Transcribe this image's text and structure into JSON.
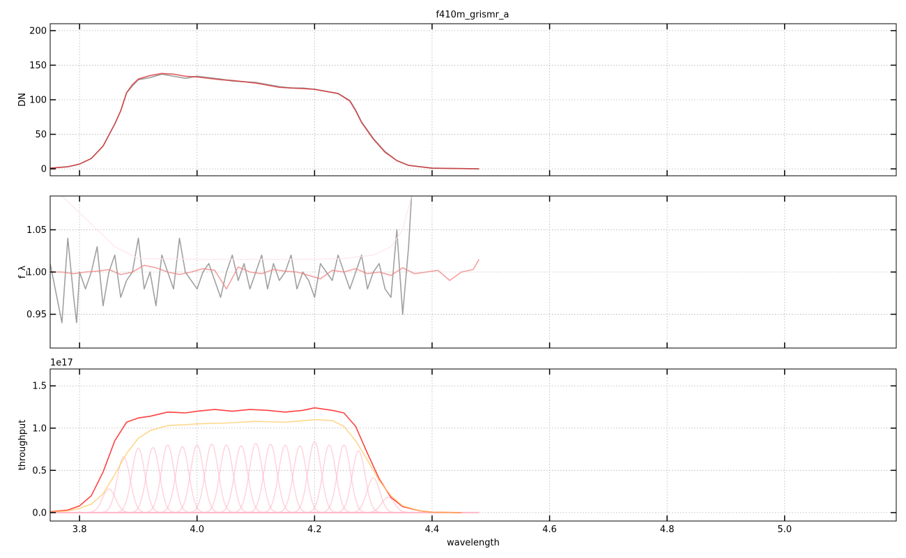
{
  "figure_title": "f410m_grismr_a",
  "chart_data": [
    {
      "type": "line",
      "panel": "top",
      "title": "f410m_grismr_a",
      "xlabel": "",
      "ylabel": "DN",
      "xlim": [
        3.75,
        5.19
      ],
      "ylim": [
        -10,
        210
      ],
      "xticks": [
        3.8,
        4.0,
        4.2,
        4.4,
        4.6,
        4.8,
        5.0
      ],
      "yticks": [
        0,
        50,
        100,
        150,
        200
      ],
      "ytick_labels": [
        "0",
        "50",
        "100",
        "150",
        "200"
      ],
      "grid": true,
      "series": [
        {
          "color": "#808080",
          "x": [
            3.75,
            3.78,
            3.8,
            3.82,
            3.84,
            3.86,
            3.87,
            3.88,
            3.89,
            3.9,
            3.92,
            3.94,
            3.96,
            3.98,
            4.0,
            4.02,
            4.04,
            4.06,
            4.08,
            4.1,
            4.12,
            4.14,
            4.16,
            4.18,
            4.2,
            4.22,
            4.24,
            4.26,
            4.27,
            4.28,
            4.3,
            4.32,
            4.34,
            4.36,
            4.38,
            4.4,
            4.44,
            4.48
          ],
          "y": [
            1,
            3,
            7,
            15,
            33,
            65,
            84,
            110,
            120,
            129,
            132,
            137,
            134,
            131,
            134,
            132,
            130,
            127,
            126,
            125,
            122,
            119,
            117,
            117,
            115,
            112,
            109,
            99,
            85,
            68,
            44,
            25,
            12,
            5,
            3,
            1,
            0.5,
            0
          ]
        },
        {
          "color": "#d62728",
          "x": [
            3.75,
            3.78,
            3.8,
            3.82,
            3.84,
            3.86,
            3.87,
            3.88,
            3.89,
            3.9,
            3.92,
            3.94,
            3.96,
            3.98,
            4.0,
            4.02,
            4.04,
            4.06,
            4.08,
            4.1,
            4.12,
            4.14,
            4.16,
            4.18,
            4.2,
            4.22,
            4.24,
            4.26,
            4.27,
            4.28,
            4.3,
            4.32,
            4.34,
            4.36,
            4.38,
            4.4,
            4.44,
            4.48
          ],
          "y": [
            1,
            3,
            7,
            15,
            33,
            65,
            84,
            110,
            122,
            130,
            135,
            138,
            137,
            134,
            133,
            131,
            129,
            128,
            126,
            124,
            121,
            118,
            117,
            116,
            115,
            112,
            109,
            98,
            84,
            67,
            43,
            24,
            12,
            5,
            3,
            1,
            0.5,
            0
          ]
        }
      ]
    },
    {
      "type": "line",
      "panel": "middle",
      "xlabel": "",
      "ylabel": "f_λ",
      "xlim": [
        3.75,
        5.19
      ],
      "ylim": [
        0.91,
        1.09
      ],
      "xticks": [
        3.8,
        4.0,
        4.2,
        4.4,
        4.6,
        4.8,
        5.0
      ],
      "yticks": [
        0.95,
        1.0,
        1.05
      ],
      "ytick_labels": [
        "0.95",
        "1.00",
        "1.05"
      ],
      "grid": true,
      "series": [
        {
          "color": "#808080",
          "x": [
            3.75,
            3.77,
            3.78,
            3.79,
            3.795,
            3.8,
            3.81,
            3.82,
            3.83,
            3.84,
            3.85,
            3.86,
            3.87,
            3.88,
            3.89,
            3.9,
            3.91,
            3.92,
            3.93,
            3.94,
            3.95,
            3.96,
            3.97,
            3.98,
            3.99,
            4.0,
            4.01,
            4.02,
            4.03,
            4.04,
            4.05,
            4.06,
            4.07,
            4.08,
            4.09,
            4.1,
            4.11,
            4.12,
            4.13,
            4.14,
            4.15,
            4.16,
            4.17,
            4.18,
            4.19,
            4.2,
            4.21,
            4.22,
            4.23,
            4.24,
            4.25,
            4.26,
            4.27,
            4.28,
            4.29,
            4.3,
            4.31,
            4.32,
            4.33,
            4.34,
            4.35,
            4.36,
            4.365
          ],
          "y": [
            1.01,
            0.94,
            1.04,
            0.97,
            0.94,
            1.0,
            0.98,
            1.0,
            1.03,
            0.96,
            1.0,
            1.02,
            0.97,
            0.99,
            1.0,
            1.04,
            0.98,
            1.0,
            0.96,
            1.02,
            1.0,
            0.98,
            1.04,
            1.0,
            0.99,
            0.98,
            1.0,
            1.01,
            0.99,
            0.97,
            1.0,
            1.02,
            0.99,
            1.01,
            0.98,
            1.0,
            1.02,
            0.98,
            1.01,
            0.99,
            1.0,
            1.02,
            0.98,
            1.0,
            0.99,
            0.97,
            1.01,
            1.0,
            0.99,
            1.02,
            1.0,
            0.98,
            1.0,
            1.02,
            0.98,
            1.0,
            1.01,
            0.98,
            0.97,
            1.05,
            0.95,
            1.03,
            1.09
          ]
        },
        {
          "color": "#f08080",
          "x": [
            3.75,
            3.77,
            3.79,
            3.81,
            3.83,
            3.85,
            3.87,
            3.89,
            3.91,
            3.93,
            3.95,
            3.97,
            3.99,
            4.01,
            4.03,
            4.05,
            4.07,
            4.09,
            4.11,
            4.13,
            4.15,
            4.17,
            4.19,
            4.21,
            4.23,
            4.25,
            4.27,
            4.29,
            4.31,
            4.33,
            4.35,
            4.37,
            4.39,
            4.41,
            4.43,
            4.45,
            4.47,
            4.48
          ],
          "y": [
            1.0,
            1.0,
            0.998,
            1.0,
            1.001,
            1.003,
            0.997,
            1.0,
            1.008,
            1.005,
            1.0,
            0.997,
            1.0,
            1.004,
            1.002,
            0.98,
            1.006,
            1.0,
            0.998,
            1.003,
            1.001,
            1.0,
            0.996,
            0.992,
            1.002,
            1.0,
            1.004,
            0.998,
            1.0,
            0.996,
            1.005,
            0.998,
            1.0,
            1.002,
            0.99,
            1.0,
            1.003,
            1.015
          ]
        },
        {
          "color": "#ffe4e8",
          "x": [
            3.77,
            3.8,
            3.83,
            3.86,
            3.9,
            4.0,
            4.1,
            4.2,
            4.25,
            4.3,
            4.33,
            4.35,
            4.365
          ],
          "y": [
            1.09,
            1.07,
            1.05,
            1.03,
            1.016,
            1.015,
            1.015,
            1.015,
            1.016,
            1.02,
            1.03,
            1.05,
            1.09
          ]
        }
      ]
    },
    {
      "type": "line",
      "panel": "bottom",
      "xlabel": "wavelength",
      "ylabel": "throughput",
      "offset_text": "1e17",
      "xlim": [
        3.75,
        5.19
      ],
      "ylim": [
        -0.1,
        1.7
      ],
      "xticks": [
        3.8,
        4.0,
        4.2,
        4.4,
        4.6,
        4.8,
        5.0
      ],
      "xtick_labels": [
        "3.8",
        "4.0",
        "4.2",
        "4.4",
        "4.6",
        "4.8",
        "5.0"
      ],
      "yticks": [
        0.0,
        0.5,
        1.0,
        1.5
      ],
      "ytick_labels": [
        "0.0",
        "0.5",
        "1.0",
        "1.5"
      ],
      "grid": true,
      "series": [
        {
          "color": "#ff0000",
          "x": [
            3.75,
            3.78,
            3.8,
            3.82,
            3.84,
            3.86,
            3.88,
            3.9,
            3.92,
            3.95,
            3.98,
            4.0,
            4.03,
            4.06,
            4.09,
            4.12,
            4.15,
            4.18,
            4.2,
            4.23,
            4.25,
            4.27,
            4.29,
            4.31,
            4.33,
            4.35,
            4.38,
            4.4,
            4.45
          ],
          "y": [
            0.01,
            0.03,
            0.08,
            0.2,
            0.48,
            0.85,
            1.07,
            1.12,
            1.14,
            1.19,
            1.18,
            1.2,
            1.22,
            1.2,
            1.22,
            1.21,
            1.19,
            1.21,
            1.24,
            1.21,
            1.18,
            1.02,
            0.7,
            0.4,
            0.18,
            0.07,
            0.02,
            0.005,
            0
          ]
        },
        {
          "color": "#ffc966",
          "x": [
            3.75,
            3.78,
            3.8,
            3.82,
            3.84,
            3.86,
            3.88,
            3.9,
            3.92,
            3.95,
            3.98,
            4.0,
            4.05,
            4.1,
            4.15,
            4.2,
            4.23,
            4.25,
            4.27,
            4.29,
            4.31,
            4.33,
            4.35,
            4.38,
            4.4,
            4.45
          ],
          "y": [
            0.005,
            0.02,
            0.05,
            0.1,
            0.22,
            0.45,
            0.7,
            0.88,
            0.97,
            1.03,
            1.04,
            1.05,
            1.06,
            1.08,
            1.07,
            1.1,
            1.09,
            1.02,
            0.85,
            0.62,
            0.38,
            0.2,
            0.08,
            0.02,
            0.005,
            0
          ]
        }
      ],
      "component_series": {
        "color": "#ffb6c8",
        "centers": [
          3.85,
          3.875,
          3.9,
          3.925,
          3.95,
          3.975,
          4.0,
          4.025,
          4.05,
          4.075,
          4.1,
          4.125,
          4.15,
          4.175,
          4.2,
          4.225,
          4.25,
          4.275,
          4.3,
          4.325
        ],
        "peaks": [
          0.28,
          0.66,
          0.76,
          0.77,
          0.8,
          0.78,
          0.8,
          0.81,
          0.8,
          0.79,
          0.82,
          0.81,
          0.8,
          0.79,
          0.84,
          0.8,
          0.8,
          0.73,
          0.41,
          0.18
        ]
      },
      "baseline": {
        "color": "#ffb6c8",
        "x": [
          3.75,
          4.48
        ],
        "y": [
          0,
          0
        ]
      }
    }
  ]
}
